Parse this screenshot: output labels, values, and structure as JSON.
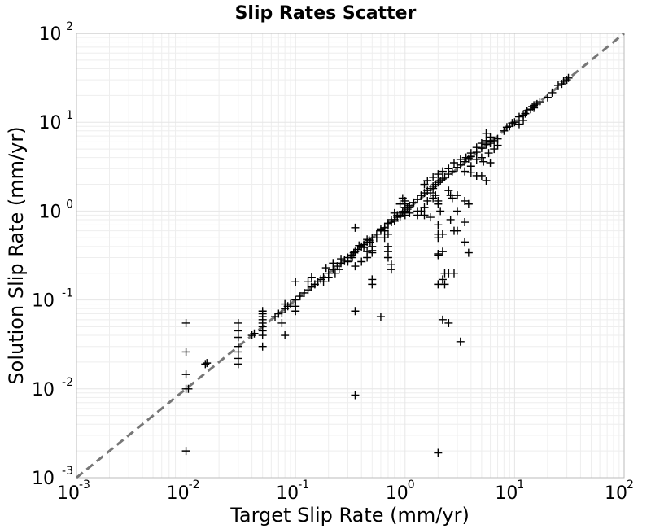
{
  "chart_data": {
    "type": "scatter",
    "title": "Slip Rates Scatter",
    "xlabel": "Target Slip Rate (mm/yr)",
    "ylabel": "Solution Slip Rate (mm/yr)",
    "xscale": "log",
    "yscale": "log",
    "xlim": [
      0.001,
      100
    ],
    "ylim": [
      0.001,
      100
    ],
    "grid": true,
    "marker": "plus",
    "colors": {
      "marker": "#000000",
      "reference_line": "#777777",
      "grid": "#e6e6e6",
      "frame": "#bbbbbb"
    },
    "reference_line": {
      "style": "dashed",
      "x": [
        0.001,
        100
      ],
      "y": [
        0.001,
        100
      ]
    },
    "x_ticks": [
      {
        "base": "10",
        "exp": "-3"
      },
      {
        "base": "10",
        "exp": "-2"
      },
      {
        "base": "10",
        "exp": "-1"
      },
      {
        "base": "10",
        "exp": "0"
      },
      {
        "base": "10",
        "exp": "1"
      },
      {
        "base": "10",
        "exp": "2"
      }
    ],
    "y_ticks": [
      {
        "base": "10",
        "exp": "-3"
      },
      {
        "base": "10",
        "exp": "-2"
      },
      {
        "base": "10",
        "exp": "-1"
      },
      {
        "base": "10",
        "exp": "0"
      },
      {
        "base": "10",
        "exp": "1"
      },
      {
        "base": "10",
        "exp": "2"
      }
    ],
    "x_tick_values": [
      0.001,
      0.01,
      0.1,
      1,
      10,
      100
    ],
    "y_tick_values": [
      0.001,
      0.01,
      0.1,
      1,
      10,
      100
    ],
    "points": [
      [
        0.01,
        0.055
      ],
      [
        0.01,
        0.026
      ],
      [
        0.01,
        0.0145
      ],
      [
        0.01,
        0.01
      ],
      [
        0.0105,
        0.01
      ],
      [
        0.01,
        0.002
      ],
      [
        0.015,
        0.019
      ],
      [
        0.0155,
        0.0195
      ],
      [
        0.03,
        0.055
      ],
      [
        0.03,
        0.045
      ],
      [
        0.03,
        0.038
      ],
      [
        0.03,
        0.03
      ],
      [
        0.03,
        0.026
      ],
      [
        0.03,
        0.022
      ],
      [
        0.03,
        0.019
      ],
      [
        0.04,
        0.04
      ],
      [
        0.042,
        0.042
      ],
      [
        0.05,
        0.075
      ],
      [
        0.05,
        0.07
      ],
      [
        0.05,
        0.065
      ],
      [
        0.05,
        0.06
      ],
      [
        0.05,
        0.055
      ],
      [
        0.05,
        0.05
      ],
      [
        0.05,
        0.045
      ],
      [
        0.05,
        0.04
      ],
      [
        0.05,
        0.03
      ],
      [
        0.065,
        0.065
      ],
      [
        0.07,
        0.07
      ],
      [
        0.075,
        0.072
      ],
      [
        0.08,
        0.08
      ],
      [
        0.085,
        0.085
      ],
      [
        0.09,
        0.09
      ],
      [
        0.075,
        0.055
      ],
      [
        0.08,
        0.04
      ],
      [
        0.08,
        0.09
      ],
      [
        0.1,
        0.1
      ],
      [
        0.1,
        0.16
      ],
      [
        0.1,
        0.085
      ],
      [
        0.1,
        0.075
      ],
      [
        0.11,
        0.11
      ],
      [
        0.12,
        0.12
      ],
      [
        0.13,
        0.13
      ],
      [
        0.14,
        0.14
      ],
      [
        0.15,
        0.15
      ],
      [
        0.16,
        0.16
      ],
      [
        0.17,
        0.17
      ],
      [
        0.13,
        0.16
      ],
      [
        0.14,
        0.18
      ],
      [
        0.18,
        0.18
      ],
      [
        0.2,
        0.2
      ],
      [
        0.22,
        0.22
      ],
      [
        0.24,
        0.24
      ],
      [
        0.26,
        0.26
      ],
      [
        0.28,
        0.28
      ],
      [
        0.3,
        0.3
      ],
      [
        0.32,
        0.32
      ],
      [
        0.34,
        0.34
      ],
      [
        0.35,
        0.35
      ],
      [
        0.37,
        0.37
      ],
      [
        0.4,
        0.4
      ],
      [
        0.42,
        0.42
      ],
      [
        0.45,
        0.45
      ],
      [
        0.47,
        0.47
      ],
      [
        0.5,
        0.5
      ],
      [
        0.55,
        0.55
      ],
      [
        0.6,
        0.6
      ],
      [
        0.65,
        0.65
      ],
      [
        0.7,
        0.7
      ],
      [
        0.75,
        0.75
      ],
      [
        0.8,
        0.8
      ],
      [
        0.85,
        0.85
      ],
      [
        0.9,
        0.9
      ],
      [
        0.95,
        0.95
      ],
      [
        1.0,
        1.0
      ],
      [
        1.05,
        1.05
      ],
      [
        1.1,
        1.1
      ],
      [
        0.19,
        0.23
      ],
      [
        0.22,
        0.26
      ],
      [
        0.25,
        0.22
      ],
      [
        0.18,
        0.16
      ],
      [
        0.2,
        0.18
      ],
      [
        0.23,
        0.2
      ],
      [
        0.26,
        0.29
      ],
      [
        0.3,
        0.27
      ],
      [
        0.33,
        0.3
      ],
      [
        0.38,
        0.41
      ],
      [
        0.42,
        0.39
      ],
      [
        0.45,
        0.48
      ],
      [
        0.48,
        0.45
      ],
      [
        0.55,
        0.5
      ],
      [
        0.6,
        0.63
      ],
      [
        0.65,
        0.6
      ],
      [
        0.7,
        0.73
      ],
      [
        0.75,
        0.8
      ],
      [
        0.8,
        0.77
      ],
      [
        0.9,
        0.87
      ],
      [
        0.95,
        0.99
      ],
      [
        1.0,
        0.95
      ],
      [
        1.05,
        1.1
      ],
      [
        0.35,
        0.65
      ],
      [
        0.3,
        0.28
      ],
      [
        0.35,
        0.075
      ],
      [
        0.35,
        0.0085
      ],
      [
        0.35,
        0.24
      ],
      [
        0.4,
        0.27
      ],
      [
        0.45,
        0.3
      ],
      [
        0.45,
        0.35
      ],
      [
        0.5,
        0.17
      ],
      [
        0.5,
        0.15
      ],
      [
        0.5,
        0.4
      ],
      [
        0.5,
        0.36
      ],
      [
        0.5,
        0.34
      ],
      [
        0.6,
        0.065
      ],
      [
        0.65,
        0.5
      ],
      [
        0.7,
        0.55
      ],
      [
        0.7,
        0.4
      ],
      [
        0.7,
        0.35
      ],
      [
        0.7,
        0.3
      ],
      [
        0.75,
        0.25
      ],
      [
        0.75,
        0.22
      ],
      [
        0.8,
        0.95
      ],
      [
        0.85,
        0.9
      ],
      [
        0.9,
        1.2
      ],
      [
        0.95,
        1.4
      ],
      [
        1.0,
        1.1
      ],
      [
        1.0,
        0.9
      ],
      [
        1.1,
        0.95
      ],
      [
        1.0,
        1.3
      ],
      [
        1.0,
        1.2
      ],
      [
        1.1,
        1.15
      ],
      [
        1.2,
        1.25
      ],
      [
        1.3,
        1.35
      ],
      [
        1.4,
        1.5
      ],
      [
        1.5,
        1.6
      ],
      [
        1.6,
        1.7
      ],
      [
        1.7,
        1.8
      ],
      [
        1.8,
        1.9
      ],
      [
        1.9,
        2.0
      ],
      [
        2.0,
        2.1
      ],
      [
        2.1,
        2.2
      ],
      [
        2.2,
        2.3
      ],
      [
        2.3,
        2.4
      ],
      [
        2.5,
        2.6
      ],
      [
        2.7,
        2.8
      ],
      [
        3.0,
        3.1
      ],
      [
        3.2,
        3.3
      ],
      [
        3.5,
        3.6
      ],
      [
        3.8,
        3.9
      ],
      [
        4.0,
        4.1
      ],
      [
        4.5,
        4.6
      ],
      [
        5.0,
        5.1
      ],
      [
        5.5,
        5.6
      ],
      [
        6.0,
        6.1
      ],
      [
        1.3,
        0.9
      ],
      [
        1.3,
        1.0
      ],
      [
        1.4,
        1.0
      ],
      [
        1.5,
        0.9
      ],
      [
        1.5,
        1.1
      ],
      [
        1.6,
        1.3
      ],
      [
        1.7,
        1.6
      ],
      [
        1.7,
        0.85
      ],
      [
        1.8,
        1.4
      ],
      [
        1.8,
        1.8
      ],
      [
        1.9,
        1.5
      ],
      [
        2.0,
        1.2
      ],
      [
        2.0,
        1.3
      ],
      [
        2.0,
        0.7
      ],
      [
        2.0,
        0.55
      ],
      [
        2.0,
        0.5
      ],
      [
        2.0,
        0.33
      ],
      [
        2.0,
        0.32
      ],
      [
        2.0,
        0.15
      ],
      [
        2.0,
        0.0019
      ],
      [
        2.1,
        1.0
      ],
      [
        2.2,
        0.55
      ],
      [
        2.2,
        0.35
      ],
      [
        2.2,
        0.17
      ],
      [
        2.2,
        0.06
      ],
      [
        2.3,
        0.2
      ],
      [
        2.3,
        0.15
      ],
      [
        2.5,
        0.2
      ],
      [
        2.5,
        0.055
      ],
      [
        2.5,
        1.7
      ],
      [
        2.6,
        1.5
      ],
      [
        2.6,
        0.8
      ],
      [
        2.7,
        1.4
      ],
      [
        2.8,
        0.6
      ],
      [
        2.8,
        0.2
      ],
      [
        3.0,
        1.5
      ],
      [
        3.0,
        1.0
      ],
      [
        3.0,
        0.6
      ],
      [
        3.2,
        0.034
      ],
      [
        3.5,
        1.3
      ],
      [
        3.5,
        0.75
      ],
      [
        3.5,
        0.45
      ],
      [
        3.8,
        0.34
      ],
      [
        3.8,
        1.2
      ],
      [
        1.5,
        2.0
      ],
      [
        1.6,
        2.2
      ],
      [
        1.8,
        2.4
      ],
      [
        2.0,
        2.6
      ],
      [
        2.2,
        2.8
      ],
      [
        2.5,
        3.0
      ],
      [
        2.8,
        3.5
      ],
      [
        3.2,
        3.8
      ],
      [
        3.6,
        4.0
      ],
      [
        4.0,
        4.5
      ],
      [
        4.5,
        5.2
      ],
      [
        5.0,
        5.8
      ],
      [
        5.5,
        6.2
      ],
      [
        6.0,
        6.8
      ],
      [
        5.5,
        7.5
      ],
      [
        5.0,
        4.0
      ],
      [
        4.5,
        3.8
      ],
      [
        4.0,
        3.2
      ],
      [
        3.5,
        2.8
      ],
      [
        4.0,
        2.7
      ],
      [
        4.5,
        2.5
      ],
      [
        5.0,
        2.5
      ],
      [
        5.5,
        2.2
      ],
      [
        6.0,
        3.5
      ],
      [
        6.5,
        5.0
      ],
      [
        7.0,
        5.5
      ],
      [
        7.0,
        6.5
      ],
      [
        6.5,
        6.2
      ],
      [
        6.0,
        5.8
      ],
      [
        5.8,
        4.5
      ],
      [
        5.2,
        3.6
      ],
      [
        8.0,
        8.0
      ],
      [
        8.5,
        8.8
      ],
      [
        9.0,
        9.0
      ],
      [
        9.5,
        9.8
      ],
      [
        10.0,
        10.0
      ],
      [
        11.0,
        11.5
      ],
      [
        12.0,
        12.0
      ],
      [
        12.0,
        10.5
      ],
      [
        13.0,
        13.5
      ],
      [
        14.0,
        14.0
      ],
      [
        15.0,
        15.5
      ],
      [
        16.0,
        16.0
      ],
      [
        17.0,
        17.0
      ],
      [
        11.0,
        9.5
      ],
      [
        12.5,
        12.5
      ],
      [
        14.5,
        15.0
      ],
      [
        15.0,
        14.5
      ],
      [
        20.0,
        19.0
      ],
      [
        22.0,
        21.5
      ],
      [
        25.0,
        26.0
      ],
      [
        27.0,
        27.0
      ],
      [
        28.0,
        29.0
      ],
      [
        30.0,
        30.0
      ],
      [
        31.0,
        31.5
      ]
    ]
  }
}
